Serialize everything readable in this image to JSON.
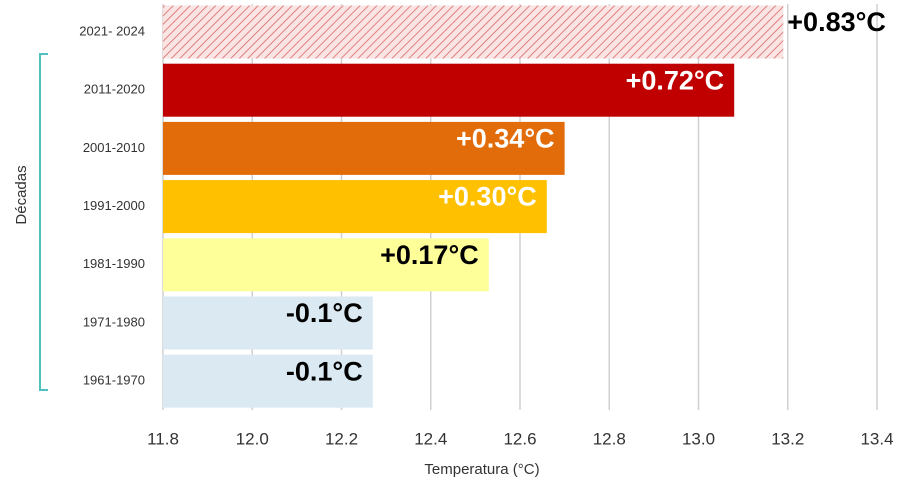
{
  "chart_data": {
    "type": "barh",
    "x_label": "Temperatura (°C)",
    "y_label": "Décadas",
    "categories": [
      "2021- 2024",
      "2011-2020",
      "2001-2010",
      "1991-2000",
      "1981-1990",
      "1971-1980",
      "1961-1970"
    ],
    "values": [
      13.19,
      13.08,
      12.7,
      12.66,
      12.53,
      12.27,
      12.27
    ],
    "colors": [
      "#f2b5b5",
      "#c00000",
      "#e36c0a",
      "#ffc000",
      "#ffff99",
      "#dbe9f2",
      "#dbe9f2"
    ],
    "hatched_categories": [
      "2021- 2024"
    ],
    "bar_labels": [
      "+0.83°C",
      "+0.72°C",
      "+0.34°C",
      "+0.30°C",
      "+0.17°C",
      "-0.1°C",
      "-0.1°C"
    ],
    "bar_label_colors": [
      "#000000",
      "#ffffff",
      "#ffffff",
      "#ffffff",
      "#000000",
      "#000000",
      "#000000"
    ],
    "xlim": [
      11.8,
      13.4
    ],
    "xticks": [
      11.8,
      {
        "value": 12,
        "label": "12.0"
      },
      12.2,
      12.4,
      12.6,
      12.8,
      {
        "value": 13,
        "label": "13.0"
      },
      13.2,
      13.4
    ],
    "grid": true
  }
}
